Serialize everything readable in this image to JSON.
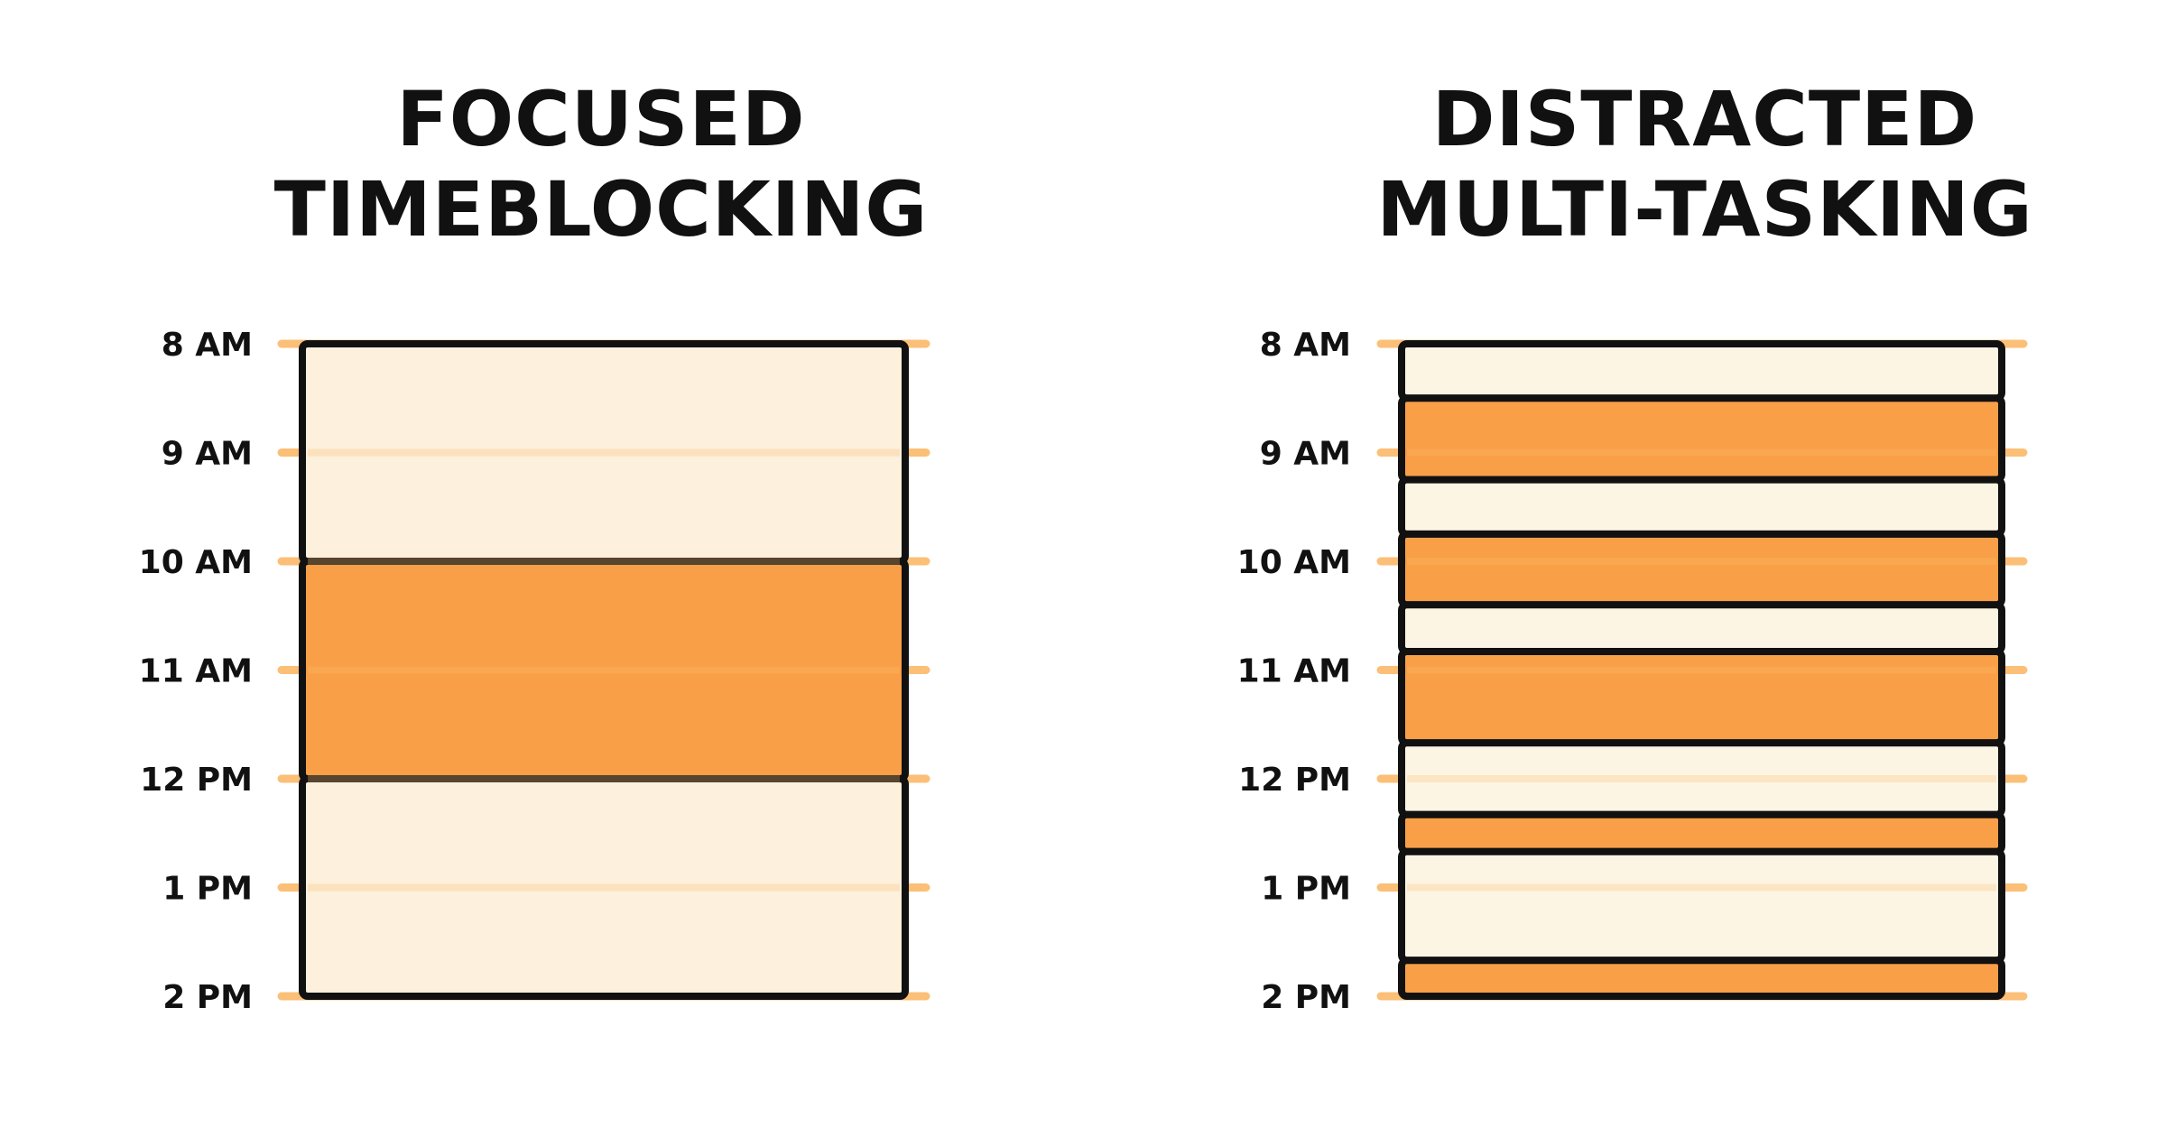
{
  "panels": [
    {
      "title_line1": "FOCUSED",
      "title_line2": "TIMEBLOCKING",
      "blocks": [
        {
          "start": 8,
          "end": 10,
          "kind": "light"
        },
        {
          "start": 10,
          "end": 12,
          "kind": "focus"
        },
        {
          "start": 12,
          "end": 14,
          "kind": "light"
        }
      ]
    },
    {
      "title_line1": "DISTRACTED",
      "title_line2": "MULTI-TASKING",
      "blocks": [
        {
          "start": 8,
          "end": 8.5,
          "kind": "light"
        },
        {
          "start": 8.5,
          "end": 9.25,
          "kind": "focus"
        },
        {
          "start": 9.25,
          "end": 9.75,
          "kind": "light"
        },
        {
          "start": 9.75,
          "end": 10.4,
          "kind": "focus"
        },
        {
          "start": 10.4,
          "end": 10.83,
          "kind": "light"
        },
        {
          "start": 10.83,
          "end": 11.67,
          "kind": "focus"
        },
        {
          "start": 11.67,
          "end": 12.33,
          "kind": "light"
        },
        {
          "start": 12.33,
          "end": 12.67,
          "kind": "focus"
        },
        {
          "start": 12.67,
          "end": 13.67,
          "kind": "light"
        },
        {
          "start": 13.67,
          "end": 14,
          "kind": "focus"
        }
      ]
    }
  ],
  "time_labels": [
    "8 AM",
    "9 AM",
    "10 AM",
    "11 AM",
    "12 PM",
    "1 PM",
    "2 PM"
  ],
  "time_range": [
    8,
    14
  ],
  "colors": {
    "focus": "#f99a3e",
    "light_left": "#fdf0dc",
    "light_right": "#fcf5e3",
    "gridline": "#fbbf77",
    "outline": "#111111"
  }
}
